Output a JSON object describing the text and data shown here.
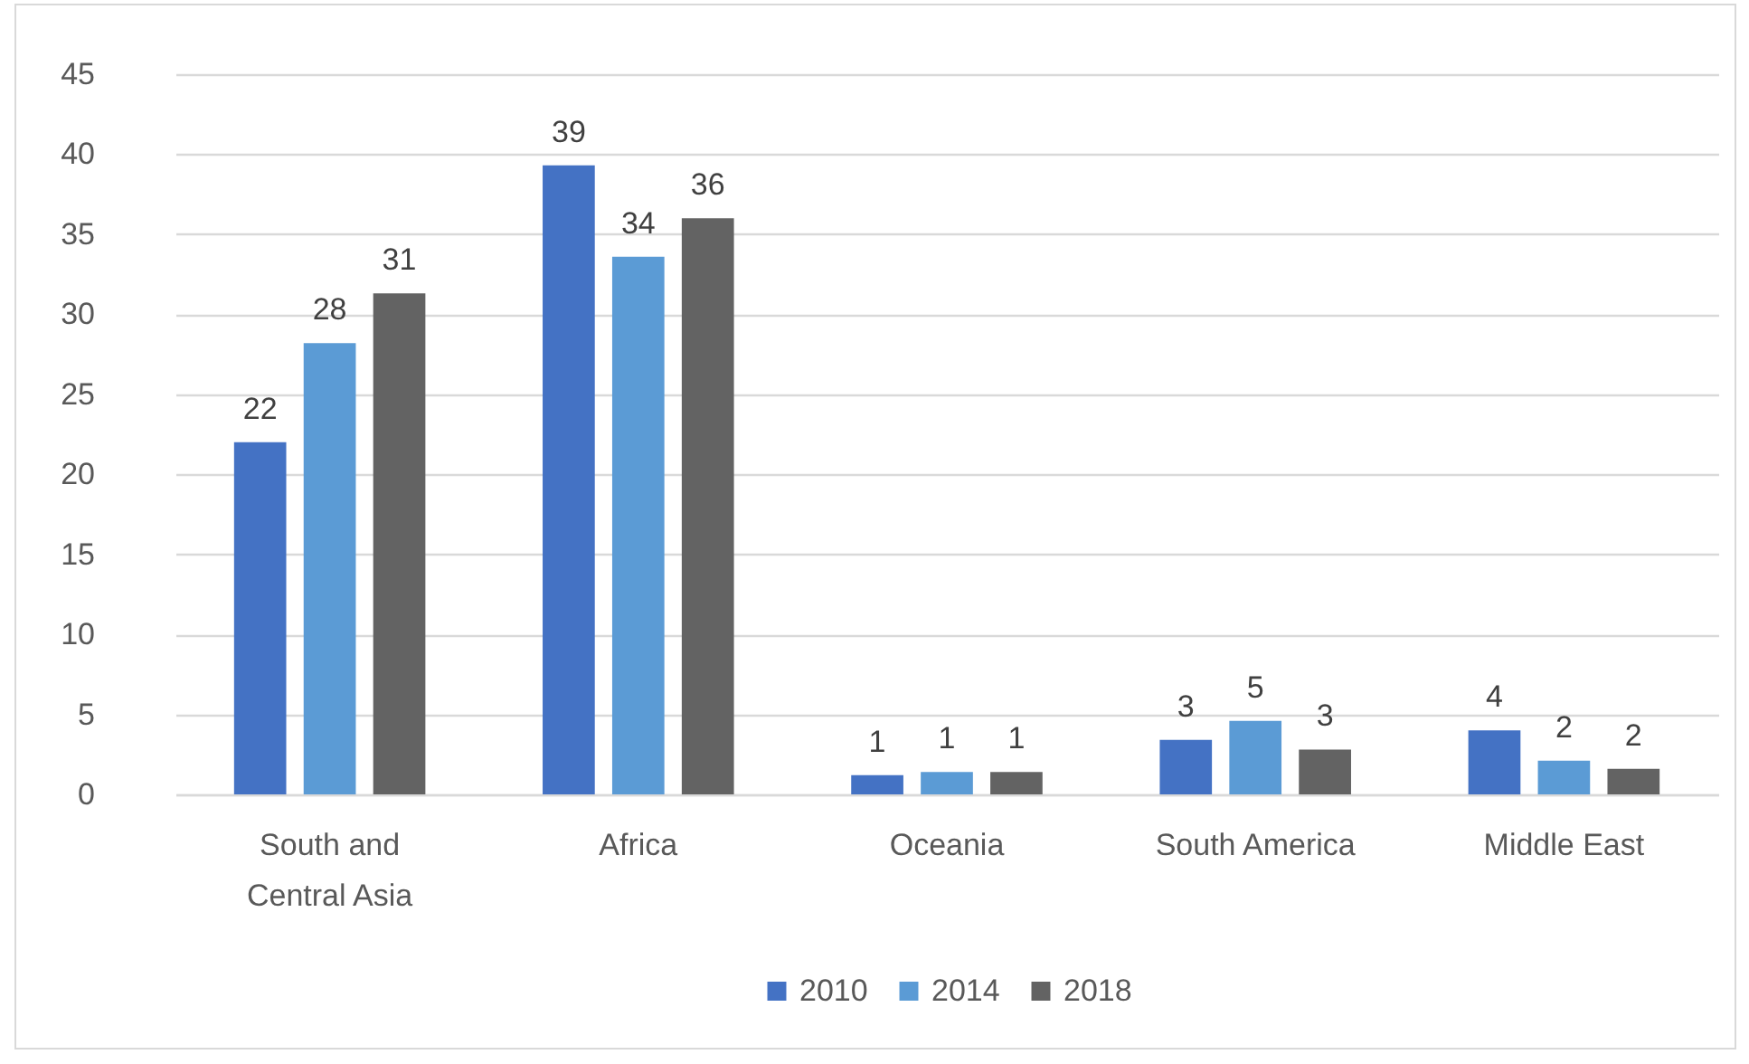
{
  "chart_data": {
    "type": "bar",
    "categories": [
      "South and Central Asia",
      "Africa",
      "Oceania",
      "South America",
      "Middle East"
    ],
    "series": [
      {
        "name": "2010",
        "color": "#4472c4",
        "values": [
          22.0,
          39.3,
          1.2,
          3.4,
          4.0
        ],
        "value_labels": [
          "22",
          "39",
          "1",
          "3",
          "4"
        ]
      },
      {
        "name": "2014",
        "color": "#5b9bd5",
        "values": [
          28.2,
          33.6,
          1.4,
          4.6,
          2.1
        ],
        "value_labels": [
          "28",
          "34",
          "1",
          "5",
          "2"
        ]
      },
      {
        "name": "2018",
        "color": "#636363",
        "values": [
          31.3,
          36.0,
          1.4,
          2.8,
          1.6
        ],
        "value_labels": [
          "31",
          "36",
          "1",
          "3",
          "2"
        ]
      }
    ],
    "ylim": [
      0,
      45
    ],
    "yticks": [
      0,
      5,
      10,
      15,
      20,
      25,
      30,
      35,
      40,
      45
    ],
    "grid": "y",
    "legend": "bottom"
  }
}
